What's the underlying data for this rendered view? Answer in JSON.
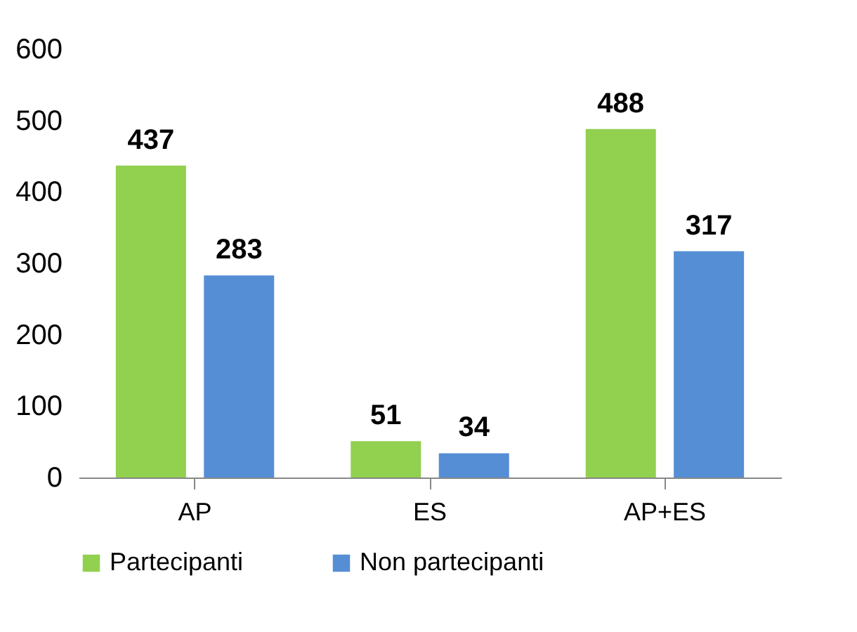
{
  "chart_data": {
    "type": "bar",
    "categories": [
      "AP",
      "ES",
      "AP+ES"
    ],
    "series": [
      {
        "name": "Partecipanti",
        "color": "#92d050",
        "values": [
          437,
          51,
          488
        ]
      },
      {
        "name": "Non partecipanti",
        "color": "#558ed5",
        "values": [
          283,
          34,
          317
        ]
      }
    ],
    "ylim": [
      0,
      600
    ],
    "yticks": [
      0,
      100,
      200,
      300,
      400,
      500,
      600
    ],
    "data_labels": true,
    "legend": "bottom",
    "grid": false
  }
}
